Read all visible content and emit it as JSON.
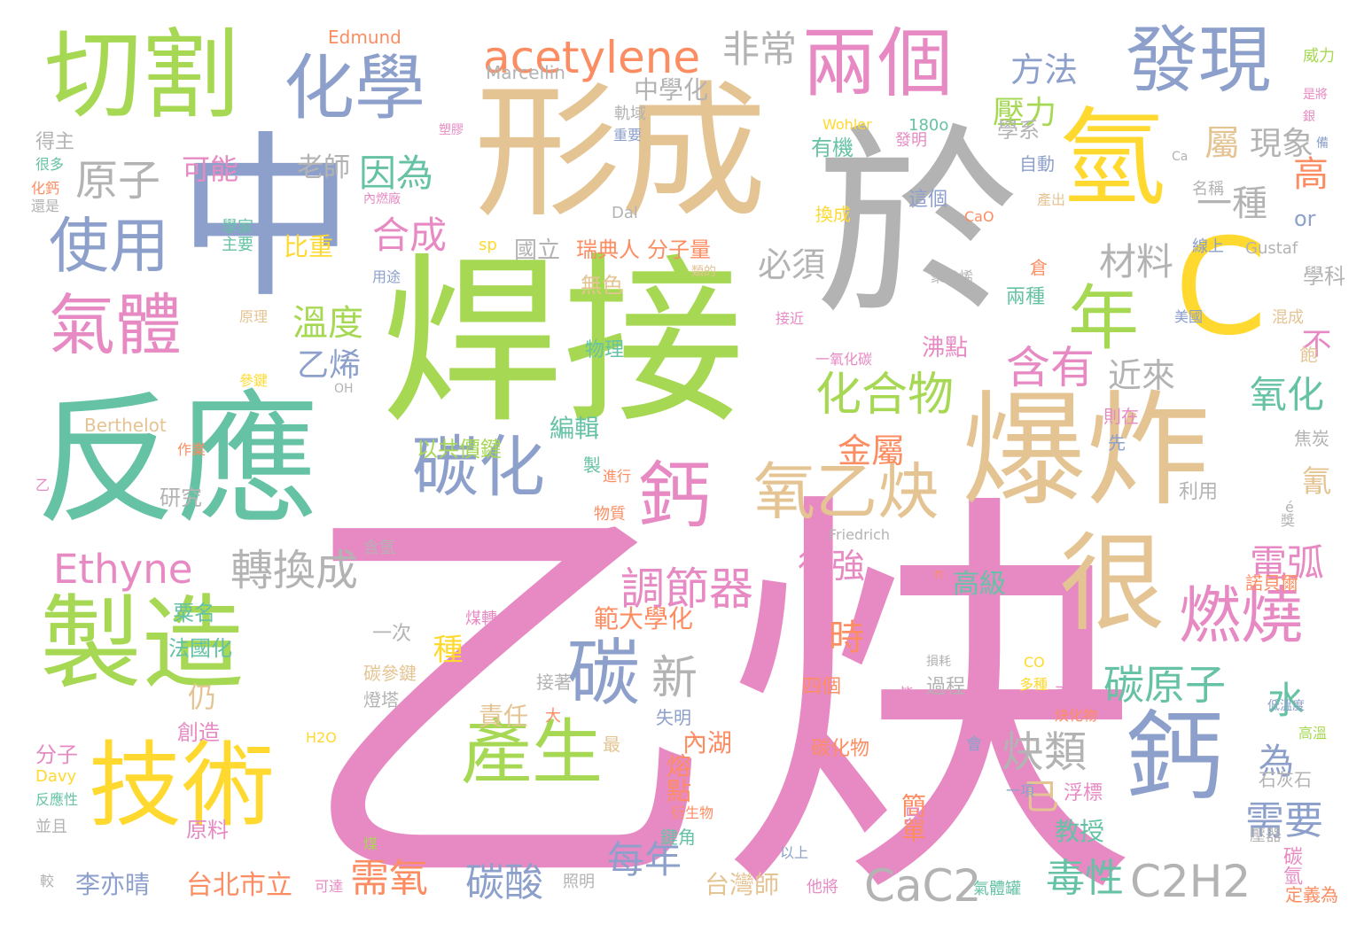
{
  "word_cloud": {
    "words": [
      {
        "text": "乙炔",
        "color": "#e78ac3"
      },
      {
        "text": "焊接",
        "color": "#a6d854"
      },
      {
        "text": "於",
        "color": "#b3b3b3"
      },
      {
        "text": "形成",
        "color": "#e5c494"
      },
      {
        "text": "反應",
        "color": "#66c2a5"
      },
      {
        "text": "中",
        "color": "#8da0cb"
      },
      {
        "text": "爆炸",
        "color": "#e5c494"
      },
      {
        "text": "製造",
        "color": "#a6d854"
      },
      {
        "text": "切割",
        "color": "#a6d854"
      },
      {
        "text": "技術",
        "color": "#ffd92f"
      },
      {
        "text": "氫",
        "color": "#ffd92f"
      },
      {
        "text": "很",
        "color": "#e5c494"
      },
      {
        "text": "鈣",
        "color": "#8da0cb"
      },
      {
        "text": "發現",
        "color": "#8da0cb"
      },
      {
        "text": "兩個",
        "color": "#e78ac3"
      },
      {
        "text": "化學",
        "color": "#8da0cb"
      },
      {
        "text": "碳化",
        "color": "#8da0cb"
      },
      {
        "text": "鈣",
        "color": "#e78ac3"
      },
      {
        "text": "C",
        "color": "#ffd92f"
      },
      {
        "text": "產生",
        "color": "#a6d854"
      },
      {
        "text": "氣體",
        "color": "#e78ac3"
      },
      {
        "text": "燃燒",
        "color": "#e78ac3"
      },
      {
        "text": "氧乙炔",
        "color": "#e5c494"
      },
      {
        "text": "碳",
        "color": "#8da0cb"
      },
      {
        "text": "年",
        "color": "#a6d854"
      },
      {
        "text": "使用",
        "color": "#8da0cb"
      },
      {
        "text": "acetylene",
        "color": "#fc8d62"
      },
      {
        "text": "Ethyne",
        "color": "#e78ac3"
      },
      {
        "text": "CaC2",
        "color": "#b3b3b3"
      },
      {
        "text": "C2H2",
        "color": "#b3b3b3"
      },
      {
        "text": "原子",
        "color": "#b3b3b3"
      },
      {
        "text": "化合物",
        "color": "#a6d854"
      },
      {
        "text": "含有",
        "color": "#e78ac3"
      },
      {
        "text": "調節器",
        "color": "#e78ac3"
      },
      {
        "text": "轉換成",
        "color": "#b3b3b3"
      },
      {
        "text": "碳原子",
        "color": "#66c2a5"
      },
      {
        "text": "炔類",
        "color": "#b3b3b3"
      },
      {
        "text": "非常",
        "color": "#b3b3b3"
      },
      {
        "text": "因為",
        "color": "#66c2a5"
      },
      {
        "text": "合成",
        "color": "#e78ac3"
      },
      {
        "text": "方法",
        "color": "#8da0cb"
      },
      {
        "text": "壓力",
        "color": "#a6d854"
      },
      {
        "text": "現象",
        "color": "#b3b3b3"
      },
      {
        "text": "材料",
        "color": "#b3b3b3"
      },
      {
        "text": "必須",
        "color": "#b3b3b3"
      },
      {
        "text": "溫度",
        "color": "#a6d854"
      },
      {
        "text": "乙烯",
        "color": "#8da0cb"
      },
      {
        "text": "近來",
        "color": "#b3b3b3"
      },
      {
        "text": "金屬",
        "color": "#fc8d62"
      },
      {
        "text": "很強",
        "color": "#e78ac3"
      },
      {
        "text": "新",
        "color": "#b3b3b3"
      },
      {
        "text": "每年",
        "color": "#8da0cb"
      },
      {
        "text": "需氧",
        "color": "#fc8d62"
      },
      {
        "text": "碳酸",
        "color": "#8da0cb"
      },
      {
        "text": "毒性",
        "color": "#66c2a5"
      },
      {
        "text": "需要",
        "color": "#8da0cb"
      },
      {
        "text": "水",
        "color": "#66c2a5"
      },
      {
        "text": "電弧",
        "color": "#e78ac3"
      },
      {
        "text": "氧化",
        "color": "#66c2a5"
      },
      {
        "text": "一種",
        "color": "#b3b3b3"
      },
      {
        "text": "屬",
        "color": "#e5c494"
      },
      {
        "text": "高",
        "color": "#fc8d62"
      },
      {
        "text": "or",
        "color": "#8da0cb"
      },
      {
        "text": "不",
        "color": "#e78ac3"
      },
      {
        "text": "氰",
        "color": "#e5c494"
      },
      {
        "text": "為",
        "color": "#8da0cb"
      },
      {
        "text": "已",
        "color": "#e5c494"
      },
      {
        "text": "可能",
        "color": "#e78ac3"
      },
      {
        "text": "老師",
        "color": "#b3b3b3"
      },
      {
        "text": "比重",
        "color": "#ffd92f"
      },
      {
        "text": "時",
        "color": "#fc8d62"
      },
      {
        "text": "仍",
        "color": "#e5c494"
      },
      {
        "text": "種",
        "color": "#ffd92f"
      },
      {
        "text": "中學化",
        "color": "#b3b3b3"
      },
      {
        "text": "學系",
        "color": "#b3b3b3"
      },
      {
        "text": "有機",
        "color": "#66c2a5"
      },
      {
        "text": "國立",
        "color": "#b3b3b3"
      },
      {
        "text": "瑞典人",
        "color": "#fc8d62"
      },
      {
        "text": "分子量",
        "color": "#fc8d62"
      },
      {
        "text": "無色",
        "color": "#e5c494"
      },
      {
        "text": "沸點",
        "color": "#e78ac3"
      },
      {
        "text": "物理",
        "color": "#66c2a5"
      },
      {
        "text": "編輯",
        "color": "#66c2a5"
      },
      {
        "text": "以共價鍵",
        "color": "#a6d854"
      },
      {
        "text": "範大學化",
        "color": "#fc8d62"
      },
      {
        "text": "內湖",
        "color": "#fc8d62"
      },
      {
        "text": "熔點",
        "color": "#fc8d62"
      },
      {
        "text": "責任",
        "color": "#e5c494"
      },
      {
        "text": "高級",
        "color": "#66c2a5"
      },
      {
        "text": "台北市立",
        "color": "#fc8d62"
      },
      {
        "text": "台灣師",
        "color": "#e5c494"
      },
      {
        "text": "李亦晴",
        "color": "#8da0cb"
      },
      {
        "text": "教授",
        "color": "#66c2a5"
      },
      {
        "text": "簡單",
        "color": "#fc8d62"
      },
      {
        "text": "粟名",
        "color": "#66c2a5"
      },
      {
        "text": "法國化",
        "color": "#66c2a5"
      },
      {
        "text": "研究",
        "color": "#b3b3b3"
      },
      {
        "text": "一次",
        "color": "#b3b3b3"
      },
      {
        "text": "創造",
        "color": "#e78ac3"
      },
      {
        "text": "分子",
        "color": "#e78ac3"
      },
      {
        "text": "原料",
        "color": "#e78ac3"
      },
      {
        "text": "四個",
        "color": "#fc8d62"
      },
      {
        "text": "碳化物",
        "color": "#fc8d62"
      },
      {
        "text": "過程",
        "color": "#b3b3b3"
      },
      {
        "text": "浮標",
        "color": "#e78ac3"
      },
      {
        "text": "石灰石",
        "color": "#b3b3b3"
      },
      {
        "text": "焦炭",
        "color": "#b3b3b3"
      },
      {
        "text": "利用",
        "color": "#b3b3b3"
      },
      {
        "text": "學科",
        "color": "#b3b3b3"
      },
      {
        "text": "得主",
        "color": "#b3b3b3"
      },
      {
        "text": "諾貝爾",
        "color": "#fc8d62"
      },
      {
        "text": "碳氫",
        "color": "#e78ac3"
      },
      {
        "text": "定義為",
        "color": "#fc8d62"
      },
      {
        "text": "Edmund",
        "color": "#fc8d62"
      },
      {
        "text": "Marcellin",
        "color": "#b3b3b3"
      },
      {
        "text": "Berthelot",
        "color": "#e5c494"
      },
      {
        "text": "Gustaf",
        "color": "#b3b3b3"
      },
      {
        "text": "Friedrich",
        "color": "#b3b3b3"
      },
      {
        "text": "Wohler",
        "color": "#ffd92f"
      },
      {
        "text": "Davy",
        "color": "#ffd92f"
      },
      {
        "text": "Dal",
        "color": "#b3b3b3"
      },
      {
        "text": "180o",
        "color": "#66c2a5"
      },
      {
        "text": "sp",
        "color": "#ffd92f"
      },
      {
        "text": "OH",
        "color": "#b3b3b3"
      },
      {
        "text": "H2O",
        "color": "#ffd92f"
      },
      {
        "text": "CaO",
        "color": "#fc8d62"
      },
      {
        "text": "CO",
        "color": "#ffd92f"
      },
      {
        "text": "n",
        "color": "#fc8d62"
      },
      {
        "text": "é",
        "color": "#b3b3b3"
      },
      {
        "text": "Ca",
        "color": "#b3b3b3"
      },
      {
        "text": "軌域",
        "color": "#b3b3b3"
      },
      {
        "text": "重要",
        "color": "#8da0cb"
      },
      {
        "text": "發明",
        "color": "#e78ac3"
      },
      {
        "text": "自動",
        "color": "#8da0cb"
      },
      {
        "text": "這個",
        "color": "#8da0cb"
      },
      {
        "text": "換成",
        "color": "#ffd92f"
      },
      {
        "text": "名稱",
        "color": "#b3b3b3"
      },
      {
        "text": "線上",
        "color": "#8da0cb"
      },
      {
        "text": "倉",
        "color": "#fc8d62"
      },
      {
        "text": "兩種",
        "color": "#66c2a5"
      },
      {
        "text": "混成",
        "color": "#e5c494"
      },
      {
        "text": "美國",
        "color": "#8da0cb"
      },
      {
        "text": "接近",
        "color": "#e78ac3"
      },
      {
        "text": "聚乙烯",
        "color": "#b3b3b3"
      },
      {
        "text": "一氧化碳",
        "color": "#e78ac3"
      },
      {
        "text": "飽",
        "color": "#e5c494"
      },
      {
        "text": "獎",
        "color": "#b3b3b3"
      },
      {
        "text": "則在",
        "color": "#e78ac3"
      },
      {
        "text": "先",
        "color": "#8da0cb"
      },
      {
        "text": "製",
        "color": "#66c2a5"
      },
      {
        "text": "進行",
        "color": "#fc8d62"
      },
      {
        "text": "物質",
        "color": "#fc8d62"
      },
      {
        "text": "作業",
        "color": "#fc8d62"
      },
      {
        "text": "乙",
        "color": "#e78ac3"
      },
      {
        "text": "含氫",
        "color": "#b3b3b3"
      },
      {
        "text": "參鍵",
        "color": "#ffd92f"
      },
      {
        "text": "原理",
        "color": "#e5c494"
      },
      {
        "text": "用途",
        "color": "#8da0cb"
      },
      {
        "text": "類的",
        "color": "#e5c494"
      },
      {
        "text": "學家",
        "color": "#66c2a5"
      },
      {
        "text": "主要",
        "color": "#66c2a5"
      },
      {
        "text": "內燃廠",
        "color": "#e78ac3"
      },
      {
        "text": "塑膠",
        "color": "#e78ac3"
      },
      {
        "text": "很多",
        "color": "#66c2a5"
      },
      {
        "text": "化鈣",
        "color": "#fc8d62"
      },
      {
        "text": "還是",
        "color": "#b3b3b3"
      },
      {
        "text": "威力",
        "color": "#a6d854"
      },
      {
        "text": "是將",
        "color": "#e78ac3"
      },
      {
        "text": "銀",
        "color": "#e78ac3"
      },
      {
        "text": "備",
        "color": "#8da0cb"
      },
      {
        "text": "產出",
        "color": "#e5c494"
      },
      {
        "text": "煤轉",
        "color": "#e78ac3"
      },
      {
        "text": "碳參鍵",
        "color": "#e5c494"
      },
      {
        "text": "燈塔",
        "color": "#b3b3b3"
      },
      {
        "text": "接著",
        "color": "#b3b3b3"
      },
      {
        "text": "大",
        "color": "#fc8d62"
      },
      {
        "text": "失明",
        "color": "#8da0cb"
      },
      {
        "text": "最",
        "color": "#e5c494"
      },
      {
        "text": "衍生物",
        "color": "#fc8d62"
      },
      {
        "text": "鍵角",
        "color": "#66c2a5"
      },
      {
        "text": "只",
        "color": "#e78ac3"
      },
      {
        "text": "氧氣",
        "color": "#e78ac3"
      },
      {
        "text": "煤",
        "color": "#a6d854"
      },
      {
        "text": "照明",
        "color": "#b3b3b3"
      },
      {
        "text": "他將",
        "color": "#e78ac3"
      },
      {
        "text": "以上",
        "color": "#8da0cb"
      },
      {
        "text": "可達",
        "color": "#e78ac3"
      },
      {
        "text": "較",
        "color": "#b3b3b3"
      },
      {
        "text": "反應性",
        "color": "#66c2a5"
      },
      {
        "text": "並且",
        "color": "#b3b3b3"
      },
      {
        "text": "壓器",
        "color": "#b3b3b3"
      },
      {
        "text": "氣體罐",
        "color": "#66c2a5"
      },
      {
        "text": "一項",
        "color": "#8da0cb"
      },
      {
        "text": "會",
        "color": "#8da0cb"
      },
      {
        "text": "多種",
        "color": "#ffd92f"
      },
      {
        "text": "再度",
        "color": "#e78ac3"
      },
      {
        "text": "炔化物",
        "color": "#fc8d62"
      },
      {
        "text": "低溫度",
        "color": "#8da0cb"
      },
      {
        "text": "高溫",
        "color": "#a6d854"
      },
      {
        "text": "損耗",
        "color": "#b3b3b3"
      },
      {
        "text": "皆",
        "color": "#e78ac3"
      }
    ]
  }
}
